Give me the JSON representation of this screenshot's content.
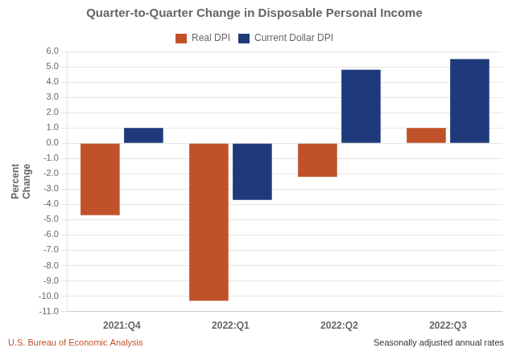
{
  "chart_data": {
    "type": "bar",
    "title": "Quarter-to-Quarter Change in Disposable Personal Income",
    "ylabel": [
      "Percent",
      "Change"
    ],
    "categories": [
      "2021:Q4",
      "2022:Q1",
      "2022:Q2",
      "2022:Q3"
    ],
    "series": [
      {
        "name": "Real DPI",
        "color": "#C0522A",
        "values": [
          -4.7,
          -10.3,
          -2.2,
          1.0
        ]
      },
      {
        "name": "Current Dollar DPI",
        "color": "#1F3A7A",
        "values": [
          1.0,
          -3.7,
          4.8,
          5.5
        ]
      }
    ],
    "ylim": [
      -11.0,
      6.0
    ],
    "yticks": [
      {
        "value": -11,
        "label": "-11.0"
      },
      {
        "value": -10,
        "label": "-10.0"
      },
      {
        "value": -9,
        "label": "-9.0"
      },
      {
        "value": -8,
        "label": "-8.0"
      },
      {
        "value": -7,
        "label": "-7.0"
      },
      {
        "value": -6,
        "label": "-6.0"
      },
      {
        "value": -5,
        "label": "-5.0"
      },
      {
        "value": -4,
        "label": "-4.0"
      },
      {
        "value": -3,
        "label": "-3.0"
      },
      {
        "value": -2,
        "label": "-2.0"
      },
      {
        "value": -1,
        "label": "-1.0"
      },
      {
        "value": 0,
        "label": "0.0"
      },
      {
        "value": 1,
        "label": "1.0"
      },
      {
        "value": 2,
        "label": "2.0"
      },
      {
        "value": 3,
        "label": "3.0"
      },
      {
        "value": 4,
        "label": "4.0"
      },
      {
        "value": 5,
        "label": "5.0"
      },
      {
        "value": 6,
        "label": "6.0"
      }
    ],
    "grid": true,
    "legend": "top",
    "annotations": [
      {
        "text": "U.S. Bureau of Economic Analysis",
        "color": "#C0522A"
      },
      {
        "text": "Seasonally adjusted annual rates",
        "color": "#333333"
      }
    ]
  }
}
